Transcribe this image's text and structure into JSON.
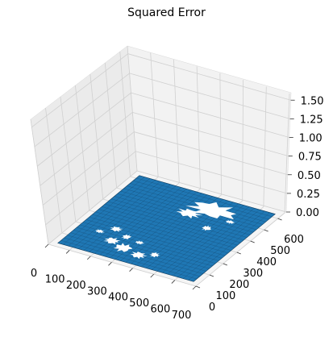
{
  "chart_data": {
    "type": "surface",
    "title": "Squared Error",
    "xlabel": "",
    "ylabel": "",
    "zlabel": "",
    "x_ticks": [
      0,
      100,
      200,
      300,
      400,
      500,
      600,
      700
    ],
    "y_ticks": [
      0,
      100,
      200,
      300,
      400,
      500,
      600
    ],
    "z_ticks": [
      "0.00",
      "0.25",
      "0.50",
      "0.75",
      "1.00",
      "1.25",
      "1.50"
    ],
    "xlim": [
      0,
      700
    ],
    "ylim": [
      0,
      650
    ],
    "zlim": [
      0,
      1.6
    ],
    "grid": true,
    "surface_color": "#1f77b4",
    "pane_color": "#f2f2f2",
    "surface_values": {
      "typical_z": 0.0,
      "pattern": "mostly zero error with scattered gaps; a large white ellipse-shaped region near the far side and scattered white patches near the front"
    }
  }
}
